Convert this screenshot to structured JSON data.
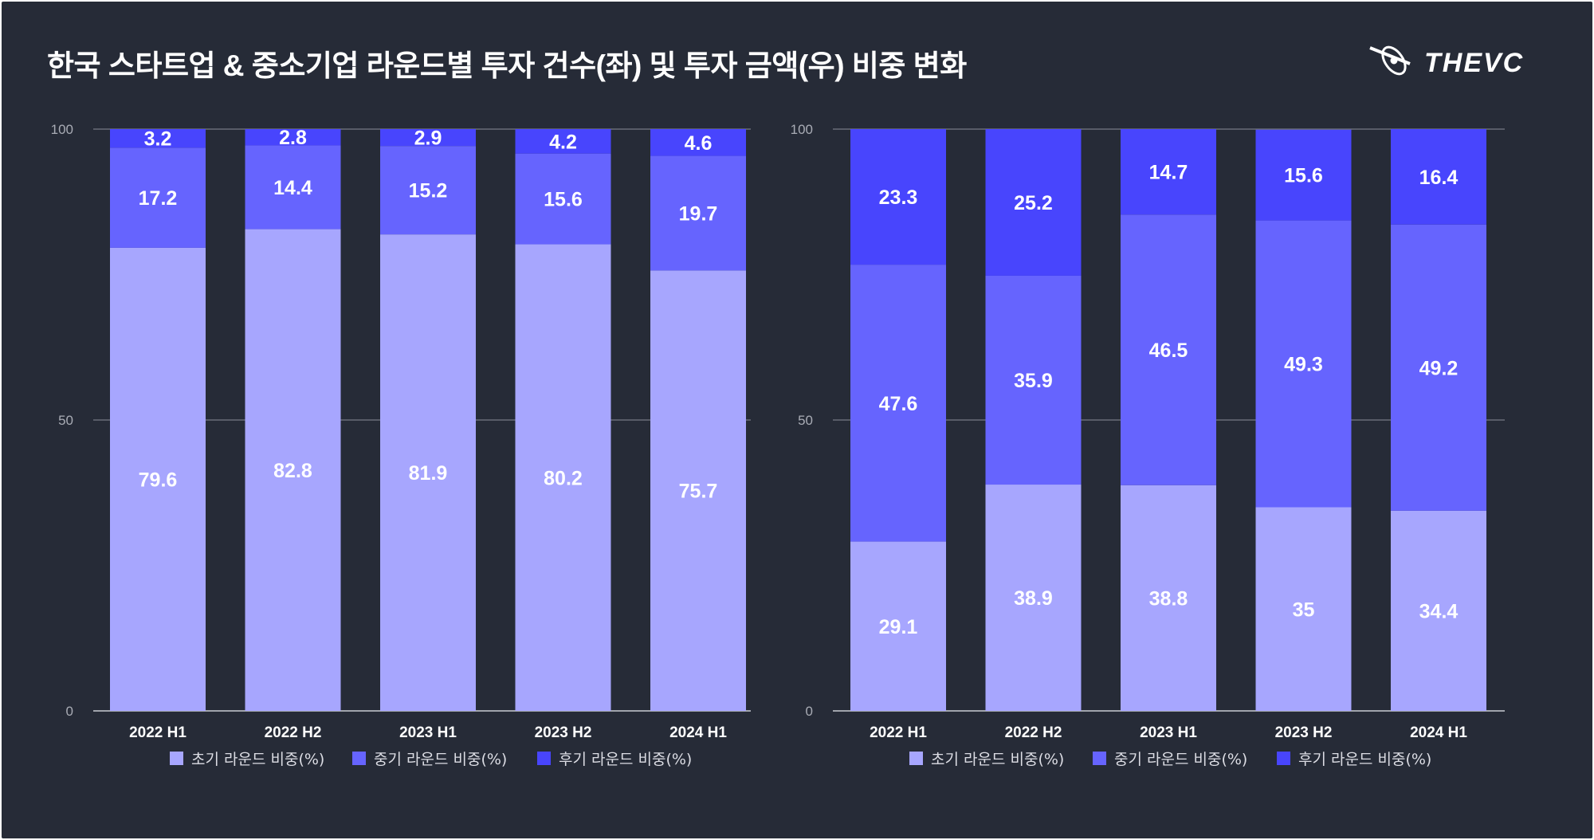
{
  "title": "한국 스타트업 & 중소기업 라운드별 투자 건수(좌) 및 투자 금액(우) 비중 변화",
  "logo": {
    "text": "THEVC"
  },
  "colors": {
    "background": "#262b37",
    "early": "#a7a6fe",
    "mid": "#6664fe",
    "late": "#4845fd",
    "grid": "#8a8e98"
  },
  "chart_data": [
    {
      "type": "bar",
      "stacked": true,
      "name": "투자 건수 비중",
      "categories": [
        "2022 H1",
        "2022 H2",
        "2023 H1",
        "2023 H2",
        "2024 H1"
      ],
      "series": [
        {
          "name": "초기 라운드 비중(%)",
          "color": "#a7a6fe",
          "values": [
            79.6,
            82.8,
            81.9,
            80.2,
            75.7
          ]
        },
        {
          "name": "중기 라운드 비중(%)",
          "color": "#6664fe",
          "values": [
            17.2,
            14.4,
            15.2,
            15.6,
            19.7
          ]
        },
        {
          "name": "후기 라운드 비중(%)",
          "color": "#4845fd",
          "values": [
            3.2,
            2.8,
            2.9,
            4.2,
            4.6
          ]
        }
      ],
      "yticks": [
        0,
        50,
        100
      ],
      "ylim": [
        0,
        100
      ],
      "legend_position": "bottom"
    },
    {
      "type": "bar",
      "stacked": true,
      "name": "투자 금액 비중",
      "categories": [
        "2022 H1",
        "2022 H2",
        "2023 H1",
        "2023 H2",
        "2024 H1"
      ],
      "series": [
        {
          "name": "초기 라운드 비중(%)",
          "color": "#a7a6fe",
          "values": [
            29.1,
            38.9,
            38.8,
            35,
            34.4
          ]
        },
        {
          "name": "중기 라운드 비중(%)",
          "color": "#6664fe",
          "values": [
            47.6,
            35.9,
            46.5,
            49.3,
            49.2
          ]
        },
        {
          "name": "후기 라운드 비중(%)",
          "color": "#4845fd",
          "values": [
            23.3,
            25.2,
            14.7,
            15.6,
            16.4
          ]
        }
      ],
      "yticks": [
        0,
        50,
        100
      ],
      "ylim": [
        0,
        100
      ],
      "legend_position": "bottom"
    }
  ]
}
